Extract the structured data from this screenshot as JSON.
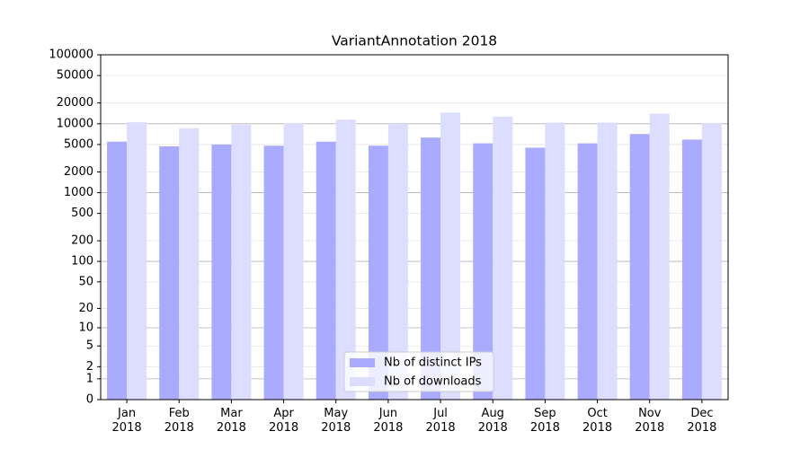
{
  "chart_data": {
    "type": "bar",
    "title": "VariantAnnotation 2018",
    "categories": [
      "Jan\n2018",
      "Feb\n2018",
      "Mar\n2018",
      "Apr\n2018",
      "May\n2018",
      "Jun\n2018",
      "Jul\n2018",
      "Aug\n2018",
      "Sep\n2018",
      "Oct\n2018",
      "Nov\n2018",
      "Dec\n2018"
    ],
    "series": [
      {
        "name": "Nb of distinct IPs",
        "color": "#aaaaff",
        "values": [
          5500,
          4700,
          5000,
          4800,
          5500,
          4800,
          6300,
          5200,
          4500,
          5200,
          7100,
          5900
        ]
      },
      {
        "name": "Nb of downloads",
        "color": "#ddddff",
        "values": [
          10500,
          8600,
          9700,
          10200,
          11500,
          10000,
          14500,
          12700,
          10400,
          10400,
          14000,
          10200
        ]
      }
    ],
    "yscale": "log1p",
    "ylim": [
      0,
      100000
    ],
    "yticks": [
      0,
      1,
      2,
      5,
      10,
      20,
      50,
      100,
      200,
      500,
      1000,
      2000,
      5000,
      10000,
      20000,
      50000,
      100000
    ],
    "grid": true,
    "legend": "lower center"
  }
}
